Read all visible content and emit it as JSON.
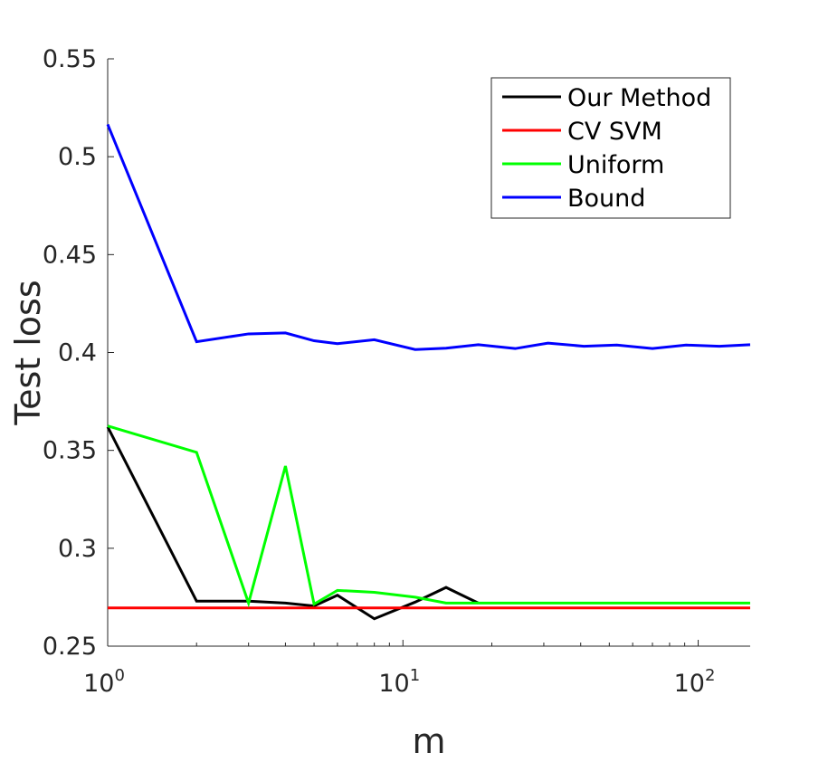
{
  "chart_data": {
    "type": "line",
    "xscale": "log",
    "xlim": [
      1,
      150
    ],
    "ylim": [
      0.25,
      0.55
    ],
    "xlabel": "m",
    "ylabel": "Test loss",
    "yticks": [
      "0.25",
      "0.3",
      "0.35",
      "0.4",
      "0.45",
      "0.5",
      "0.55"
    ],
    "xticks": [
      {
        "value": 1,
        "base": "10",
        "exp": "0"
      },
      {
        "value": 10,
        "base": "10",
        "exp": "1"
      },
      {
        "value": 100,
        "base": "10",
        "exp": "2"
      }
    ],
    "legend_position": "top-right",
    "grid": false,
    "series": [
      {
        "name": "Our Method",
        "color": "#000000",
        "x": [
          1,
          2,
          3,
          4,
          5,
          6,
          8,
          11,
          14,
          18
        ],
        "y": [
          0.362,
          0.273,
          0.273,
          0.272,
          0.2705,
          0.276,
          0.264,
          0.2725,
          0.28,
          0.272
        ]
      },
      {
        "name": "CV SVM",
        "color": "#ff0000",
        "x": [
          1,
          150
        ],
        "y": [
          0.2695,
          0.2695
        ]
      },
      {
        "name": "Uniform",
        "color": "#00ff00",
        "x": [
          1,
          2,
          3,
          4,
          5,
          6,
          8,
          11,
          14,
          18,
          25,
          150
        ],
        "y": [
          0.3625,
          0.349,
          0.272,
          0.342,
          0.2715,
          0.2785,
          0.2775,
          0.275,
          0.272,
          0.272,
          0.272,
          0.272
        ]
      },
      {
        "name": "Bound",
        "color": "#0000ff",
        "x": [
          1,
          2,
          3,
          4,
          5,
          6,
          8,
          11,
          14,
          18,
          24,
          31,
          41,
          53,
          70,
          91,
          118,
          150
        ],
        "y": [
          0.5165,
          0.4055,
          0.4095,
          0.41,
          0.406,
          0.4045,
          0.4065,
          0.4015,
          0.4022,
          0.404,
          0.402,
          0.4048,
          0.4032,
          0.4038,
          0.402,
          0.4038,
          0.4032,
          0.404
        ]
      }
    ]
  }
}
